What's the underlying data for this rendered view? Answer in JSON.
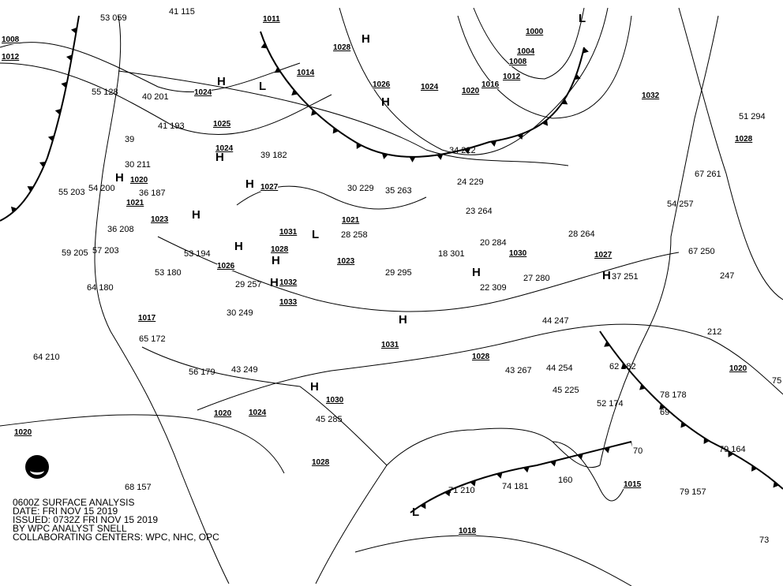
{
  "caption": {
    "line1": "0600Z SURFACE ANALYSIS",
    "line2": "DATE: FRI NOV 15 2019",
    "line3": "ISSUED: 0732Z FRI NOV 15 2019",
    "line4": "BY WPC ANALYST SNELL",
    "line5": "COLLABORATING CENTERS: WPC, NHC, OPC"
  },
  "logo": "NOAA",
  "isobar_labels": [
    "1008",
    "1012",
    "1011",
    "1028",
    "1004",
    "1000",
    "1008",
    "1012",
    "1016",
    "1020",
    "1024",
    "1026",
    "1014",
    "1024",
    "1025",
    "1024",
    "1027",
    "1020",
    "1021",
    "1023",
    "1031",
    "1021",
    "1023",
    "1028",
    "1026",
    "1032",
    "1033",
    "1017",
    "1031",
    "1028",
    "1030",
    "1020",
    "1024",
    "1028",
    "1020",
    "1018",
    "1015",
    "1020",
    "1028",
    "1027",
    "1030",
    "1032"
  ],
  "pressure_centers": [
    "H",
    "H",
    "H",
    "H",
    "H",
    "H",
    "H",
    "H",
    "H",
    "H",
    "H",
    "H",
    "H",
    "H",
    "L",
    "L",
    "L",
    "L"
  ],
  "station_values": [
    "53 059",
    "41 115",
    "55 128",
    "40 201",
    "41 193",
    "39",
    "30 211",
    "54 200",
    "55 203",
    "36 187",
    "36 208",
    "59 205",
    "57 203",
    "53 194",
    "53 180",
    "64 180",
    "65 172",
    "64 210",
    "56 179",
    "43 249",
    "30 249",
    "29 257",
    "39 182",
    "30 229",
    "35 263",
    "28 258",
    "29 295",
    "18 301",
    "20 284",
    "22 309",
    "34 222",
    "24 229",
    "23 264",
    "28 264",
    "27 280",
    "37 251",
    "44 247",
    "43 267",
    "44 254",
    "45 225",
    "52 174",
    "62 182",
    "78 178",
    "79 164",
    "79 157",
    "74 181",
    "71 210",
    "45 285",
    "68 157",
    "51 294",
    "67 261",
    "67 250",
    "54 257",
    "212",
    "247",
    "160",
    "75",
    "69",
    "70",
    "73"
  ],
  "colors": {
    "lines": "#000000",
    "background": "#ffffff"
  }
}
